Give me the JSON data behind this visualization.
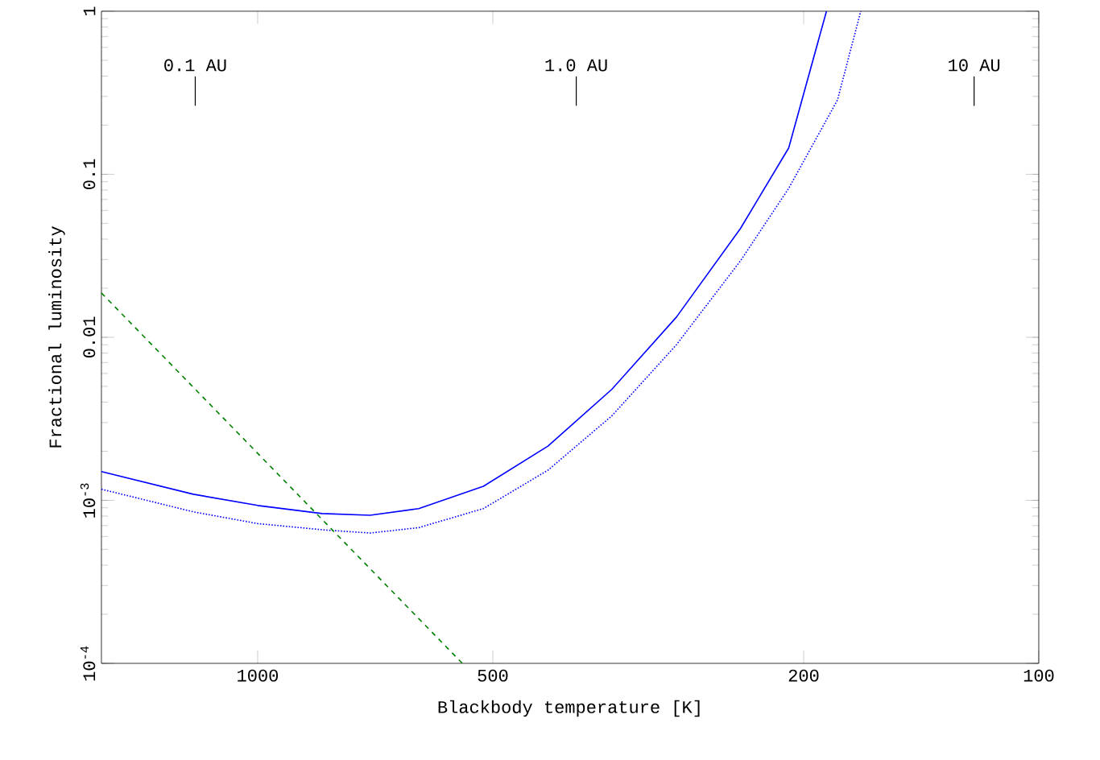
{
  "chart_data": {
    "type": "line",
    "xlabel": "Blackbody temperature [K]",
    "ylabel": "Fractional luminosity",
    "log": "xy",
    "xlim": [
      1585,
      100
    ],
    "ylim": [
      0.0001,
      1
    ],
    "xticks": [
      1000,
      500,
      200,
      100
    ],
    "yticks": [
      {
        "value": 0.0001,
        "label": "10$^{-4}$"
      },
      {
        "value": 0.001,
        "label": "10$^{-3}$"
      },
      0.01,
      0.1,
      1
    ],
    "grid": false,
    "ref_lines": [
      {
        "axis": "x",
        "value": 1202,
        "label": "0.1 AU"
      },
      {
        "axis": "x",
        "value": 391,
        "label": "1.0 AU"
      },
      {
        "axis": "x",
        "value": 121,
        "label": "10 AU"
      }
    ],
    "series": [
      {
        "color": "#0000ff",
        "line_style": "solid",
        "x": [
          1585,
          1209,
          1000,
          827,
          718,
          622,
          514,
          425,
          352,
          291,
          241,
          209,
          187
        ],
        "values": [
          0.0015,
          0.00109,
          0.00093,
          0.00083,
          0.00081,
          0.00089,
          0.00122,
          0.00215,
          0.0048,
          0.0133,
          0.0464,
          0.145,
          1
        ]
      },
      {
        "color": "#0000ff",
        "line_style": "dotted",
        "x": [
          1585,
          1209,
          1000,
          827,
          718,
          622,
          514,
          425,
          352,
          291,
          241,
          209,
          181,
          169
        ],
        "values": [
          0.00117,
          0.00085,
          0.00072,
          0.00066,
          0.00063,
          0.00068,
          0.00089,
          0.00153,
          0.0033,
          0.009,
          0.0294,
          0.082,
          0.286,
          1
        ]
      },
      {
        "color": "#007f00",
        "line_style": "dashed",
        "x": [
          1585,
          547
        ],
        "values": [
          0.0187,
          0.0001
        ]
      }
    ]
  }
}
